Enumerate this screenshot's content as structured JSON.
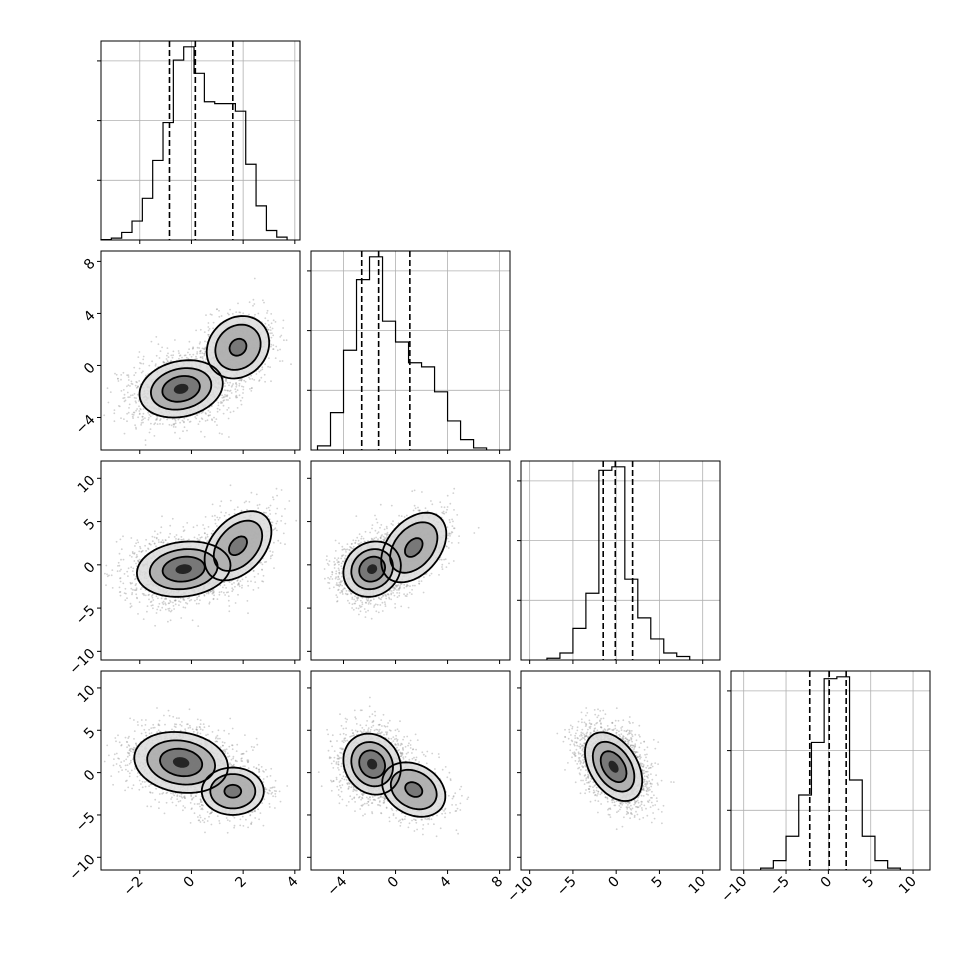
{
  "chart_data": {
    "type": "corner",
    "variables": 4,
    "colors": {
      "line": "#000000",
      "grid": "#b0b0b0",
      "points": "#9a9a9a"
    },
    "grid": true,
    "axes": [
      {
        "range": [
          -3.5,
          4.2
        ],
        "ticks": [
          -2,
          0,
          2,
          4
        ],
        "tick_labels": [
          "−2",
          "0",
          "2",
          "4"
        ],
        "quantiles": [
          -0.85,
          0.15,
          1.6
        ]
      },
      {
        "range": [
          -6.5,
          8.8
        ],
        "ticks": [
          -4,
          0,
          4,
          8
        ],
        "tick_labels": [
          "−4",
          "0",
          "4",
          "8"
        ],
        "quantiles": [
          -2.6,
          -1.3,
          1.1
        ]
      },
      {
        "range": [
          -11,
          12
        ],
        "ticks": [
          -10,
          -5,
          0,
          5,
          10
        ],
        "tick_labels": [
          "−10",
          "−5",
          "0",
          "5",
          "10"
        ],
        "quantiles": [
          -1.5,
          -0.1,
          1.9
        ]
      },
      {
        "range": [
          -11.5,
          12
        ],
        "ticks": [
          -10,
          -5,
          0,
          5,
          10
        ],
        "tick_labels": [
          "−10",
          "−5",
          "0",
          "5",
          "10"
        ],
        "quantiles": [
          -2.2,
          0.1,
          2.1
        ]
      }
    ],
    "histograms": [
      {
        "bins": [
          -3.5,
          -3.1,
          -2.7,
          -2.3,
          -1.9,
          -1.5,
          -1.1,
          -0.7,
          -0.3,
          0.1,
          0.5,
          0.9,
          1.3,
          1.7,
          2.1,
          2.5,
          2.9,
          3.3,
          3.7
        ],
        "counts": [
          0.2,
          1,
          4,
          10,
          22,
          42,
          62,
          95,
          102,
          88,
          73,
          72,
          72,
          68,
          40,
          18,
          5,
          1.5
        ]
      },
      {
        "bins": [
          -6,
          -5,
          -4,
          -3,
          -2,
          -1,
          0,
          1,
          2,
          3,
          4,
          5,
          6,
          7
        ],
        "counts": [
          2,
          18,
          48,
          82,
          93,
          62,
          52,
          42,
          40,
          28,
          14,
          5,
          1
        ]
      },
      {
        "bins": [
          -8,
          -6.5,
          -5,
          -3.5,
          -2,
          -0.5,
          1,
          2.5,
          4,
          5.5,
          7,
          8.5
        ],
        "counts": [
          1,
          4,
          18,
          38,
          108,
          110,
          46,
          24,
          12,
          4,
          2
        ]
      },
      {
        "bins": [
          -8,
          -6.5,
          -5,
          -3.5,
          -2,
          -0.5,
          1,
          2.5,
          4,
          5.5,
          7,
          8.5
        ],
        "counts": [
          1,
          5,
          18,
          40,
          68,
          102,
          103,
          48,
          18,
          5,
          1
        ]
      }
    ],
    "scatter_panels": [
      {
        "row": 1,
        "col": 0,
        "modes": [
          {
            "x": -0.4,
            "y": -1.8,
            "sx": 0.8,
            "sy": 1.1,
            "w": 0.7,
            "c": 0.15
          },
          {
            "x": 1.8,
            "y": 1.4,
            "sx": 0.6,
            "sy": 1.2,
            "w": 0.3,
            "c": 0.1
          }
        ]
      },
      {
        "row": 2,
        "col": 0,
        "modes": [
          {
            "x": -0.3,
            "y": -0.5,
            "sx": 0.9,
            "sy": 1.6,
            "w": 0.72,
            "c": 0.1
          },
          {
            "x": 1.8,
            "y": 2.2,
            "sx": 0.6,
            "sy": 2.0,
            "w": 0.28,
            "c": 0.2
          }
        ]
      },
      {
        "row": 2,
        "col": 1,
        "modes": [
          {
            "x": -1.8,
            "y": -0.5,
            "sx": 1.1,
            "sy": 1.6,
            "w": 0.7,
            "c": 0.1
          },
          {
            "x": 1.4,
            "y": 2.0,
            "sx": 1.2,
            "sy": 2.0,
            "w": 0.3,
            "c": 0.3
          }
        ]
      },
      {
        "row": 3,
        "col": 0,
        "modes": [
          {
            "x": -0.4,
            "y": 1.2,
            "sx": 0.9,
            "sy": 1.8,
            "w": 0.7,
            "c": -0.1
          },
          {
            "x": 1.6,
            "y": -2.2,
            "sx": 0.6,
            "sy": 1.4,
            "w": 0.3,
            "c": 0.0
          }
        ]
      },
      {
        "row": 3,
        "col": 1,
        "modes": [
          {
            "x": -1.8,
            "y": 1.0,
            "sx": 1.1,
            "sy": 1.8,
            "w": 0.7,
            "c": -0.1
          },
          {
            "x": 1.4,
            "y": -2.0,
            "sx": 1.2,
            "sy": 1.6,
            "w": 0.3,
            "c": -0.2
          }
        ]
      },
      {
        "row": 3,
        "col": 2,
        "modes": [
          {
            "x": -0.3,
            "y": 0.7,
            "sx": 1.6,
            "sy": 2.0,
            "w": 1.0,
            "c": -0.35
          }
        ]
      }
    ]
  }
}
